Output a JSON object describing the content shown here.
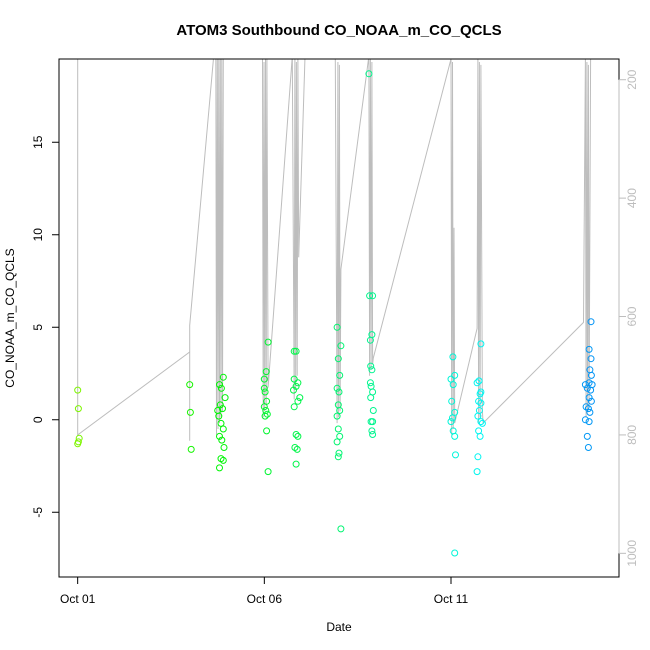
{
  "chart_data": {
    "type": "scatter",
    "title": "ATOM3 Southbound CO_NOAA_m_CO_QCLS",
    "xlabel": "Date",
    "ylabel": "CO_NOAA_m_CO_QCLS",
    "x_ticks": [
      {
        "label": "Oct 01",
        "day": 1
      },
      {
        "label": "Oct 06",
        "day": 6
      },
      {
        "label": "Oct 11",
        "day": 11
      }
    ],
    "y_ticks": [
      -5,
      0,
      5,
      10,
      15
    ],
    "ylim": [
      -8.5,
      19.5
    ],
    "xlim_days": [
      0.5,
      15.5
    ],
    "right_axis": {
      "ticks": [
        200,
        400,
        600,
        800,
        1000
      ],
      "range": [
        165,
        1040
      ],
      "reversed": true,
      "color": "#bdbdbd"
    },
    "grid": false,
    "legend": "none",
    "point_style": "open circles, color gradient from green (early) through cyan to blue (late)",
    "series": [
      {
        "values": [
          {
            "x": 1.0,
            "y": 1.6
          },
          {
            "x": 1.02,
            "y": 0.6
          },
          {
            "x": 1.04,
            "y": -1.0
          },
          {
            "x": 1.02,
            "y": -1.2
          },
          {
            "x": 1.0,
            "y": -1.3
          },
          {
            "x": 4.0,
            "y": 1.9
          },
          {
            "x": 4.02,
            "y": 0.4
          },
          {
            "x": 4.04,
            "y": -1.6
          },
          {
            "x": 4.75,
            "y": 0.5
          },
          {
            "x": 4.8,
            "y": 1.9
          },
          {
            "x": 4.85,
            "y": 1.7
          },
          {
            "x": 4.9,
            "y": 2.3
          },
          {
            "x": 4.95,
            "y": 1.2
          },
          {
            "x": 4.82,
            "y": 0.8
          },
          {
            "x": 4.88,
            "y": 0.6
          },
          {
            "x": 4.78,
            "y": 0.2
          },
          {
            "x": 4.84,
            "y": -0.2
          },
          {
            "x": 4.9,
            "y": -0.5
          },
          {
            "x": 4.8,
            "y": -0.9
          },
          {
            "x": 4.86,
            "y": -1.1
          },
          {
            "x": 4.92,
            "y": -1.5
          },
          {
            "x": 4.84,
            "y": -2.1
          },
          {
            "x": 4.9,
            "y": -2.2
          },
          {
            "x": 4.8,
            "y": -2.6
          },
          {
            "x": 6.0,
            "y": 2.2
          },
          {
            "x": 6.05,
            "y": 2.6
          },
          {
            "x": 6.1,
            "y": 4.2
          },
          {
            "x": 6.0,
            "y": 1.7
          },
          {
            "x": 6.02,
            "y": 1.5
          },
          {
            "x": 6.06,
            "y": 1.0
          },
          {
            "x": 6.0,
            "y": 0.7
          },
          {
            "x": 6.04,
            "y": 0.5
          },
          {
            "x": 6.08,
            "y": 0.3
          },
          {
            "x": 6.02,
            "y": 0.2
          },
          {
            "x": 6.06,
            "y": -0.6
          },
          {
            "x": 6.1,
            "y": -2.8
          },
          {
            "x": 6.8,
            "y": 3.7
          },
          {
            "x": 6.85,
            "y": 3.7
          },
          {
            "x": 6.8,
            "y": 2.2
          },
          {
            "x": 6.85,
            "y": 1.8
          },
          {
            "x": 6.9,
            "y": 2.0
          },
          {
            "x": 6.78,
            "y": 1.6
          },
          {
            "x": 6.95,
            "y": 1.2
          },
          {
            "x": 6.9,
            "y": 1.0
          },
          {
            "x": 6.8,
            "y": 0.7
          },
          {
            "x": 6.85,
            "y": -0.8
          },
          {
            "x": 6.9,
            "y": -0.9
          },
          {
            "x": 6.82,
            "y": -1.5
          },
          {
            "x": 6.88,
            "y": -1.6
          },
          {
            "x": 6.85,
            "y": -2.4
          },
          {
            "x": 7.95,
            "y": 5.0
          },
          {
            "x": 8.05,
            "y": 4.0
          },
          {
            "x": 7.98,
            "y": 3.3
          },
          {
            "x": 8.02,
            "y": 2.4
          },
          {
            "x": 7.95,
            "y": 1.7
          },
          {
            "x": 8.0,
            "y": 1.5
          },
          {
            "x": 7.98,
            "y": 0.8
          },
          {
            "x": 8.02,
            "y": 0.5
          },
          {
            "x": 7.95,
            "y": 0.2
          },
          {
            "x": 7.98,
            "y": -0.5
          },
          {
            "x": 8.02,
            "y": -0.9
          },
          {
            "x": 7.95,
            "y": -1.2
          },
          {
            "x": 8.0,
            "y": -1.8
          },
          {
            "x": 7.98,
            "y": -2.0
          },
          {
            "x": 8.05,
            "y": -5.9
          },
          {
            "x": 8.8,
            "y": 18.7
          },
          {
            "x": 8.82,
            "y": 6.7
          },
          {
            "x": 8.9,
            "y": 6.7
          },
          {
            "x": 8.88,
            "y": 4.6
          },
          {
            "x": 8.84,
            "y": 4.3
          },
          {
            "x": 8.85,
            "y": 2.9
          },
          {
            "x": 8.88,
            "y": 2.7
          },
          {
            "x": 8.84,
            "y": 2.0
          },
          {
            "x": 8.86,
            "y": 1.8
          },
          {
            "x": 8.9,
            "y": 1.5
          },
          {
            "x": 8.85,
            "y": 1.2
          },
          {
            "x": 8.92,
            "y": 0.5
          },
          {
            "x": 8.86,
            "y": -0.1
          },
          {
            "x": 8.9,
            "y": -0.1
          },
          {
            "x": 8.88,
            "y": -0.6
          },
          {
            "x": 8.9,
            "y": -0.8
          },
          {
            "x": 11.05,
            "y": 3.4
          },
          {
            "x": 11.1,
            "y": 2.4
          },
          {
            "x": 11.0,
            "y": 2.2
          },
          {
            "x": 11.06,
            "y": 1.9
          },
          {
            "x": 11.02,
            "y": 1.0
          },
          {
            "x": 11.1,
            "y": 0.4
          },
          {
            "x": 11.04,
            "y": 0.1
          },
          {
            "x": 11.0,
            "y": -0.1
          },
          {
            "x": 11.06,
            "y": -0.6
          },
          {
            "x": 11.1,
            "y": -0.9
          },
          {
            "x": 11.12,
            "y": -1.9
          },
          {
            "x": 11.1,
            "y": -7.2
          },
          {
            "x": 11.8,
            "y": 4.1
          },
          {
            "x": 11.75,
            "y": 2.1
          },
          {
            "x": 11.7,
            "y": 2.0
          },
          {
            "x": 11.8,
            "y": 1.5
          },
          {
            "x": 11.78,
            "y": 1.4
          },
          {
            "x": 11.74,
            "y": 1.0
          },
          {
            "x": 11.8,
            "y": 0.9
          },
          {
            "x": 11.76,
            "y": 0.5
          },
          {
            "x": 11.72,
            "y": 0.2
          },
          {
            "x": 11.8,
            "y": -0.1
          },
          {
            "x": 11.84,
            "y": -0.2
          },
          {
            "x": 11.74,
            "y": -0.6
          },
          {
            "x": 11.78,
            "y": -0.9
          },
          {
            "x": 11.72,
            "y": -2.0
          },
          {
            "x": 11.7,
            "y": -2.8
          },
          {
            "x": 14.75,
            "y": 5.3
          },
          {
            "x": 14.7,
            "y": 3.8
          },
          {
            "x": 14.75,
            "y": 3.3
          },
          {
            "x": 14.72,
            "y": 2.7
          },
          {
            "x": 14.76,
            "y": 2.4
          },
          {
            "x": 14.6,
            "y": 1.9
          },
          {
            "x": 14.7,
            "y": 2.0
          },
          {
            "x": 14.78,
            "y": 1.9
          },
          {
            "x": 14.65,
            "y": 1.7
          },
          {
            "x": 14.74,
            "y": 1.6
          },
          {
            "x": 14.7,
            "y": 1.2
          },
          {
            "x": 14.76,
            "y": 1.0
          },
          {
            "x": 14.62,
            "y": 0.7
          },
          {
            "x": 14.68,
            "y": 0.6
          },
          {
            "x": 14.72,
            "y": 0.4
          },
          {
            "x": 14.6,
            "y": 0.0
          },
          {
            "x": 14.7,
            "y": -0.1
          },
          {
            "x": 14.65,
            "y": -0.9
          },
          {
            "x": 14.68,
            "y": -1.5
          }
        ]
      }
    ],
    "pressure_trace": {
      "color": "#bdbdbd",
      "points": [
        {
          "x": 1.0,
          "p": 165
        },
        {
          "x": 1.0,
          "p": 800
        },
        {
          "x": 4.0,
          "p": 660
        },
        {
          "x": 4.0,
          "p": 765
        },
        {
          "x": 4.0,
          "p": 810
        },
        {
          "x": 4.0,
          "p": 615
        },
        {
          "x": 4.7,
          "p": 120
        },
        {
          "x": 4.72,
          "p": 800
        },
        {
          "x": 4.74,
          "p": 120
        },
        {
          "x": 4.76,
          "p": 790
        },
        {
          "x": 4.78,
          "p": 130
        },
        {
          "x": 4.8,
          "p": 780
        },
        {
          "x": 4.82,
          "p": 140
        },
        {
          "x": 4.84,
          "p": 770
        },
        {
          "x": 4.86,
          "p": 150
        },
        {
          "x": 4.88,
          "p": 760
        },
        {
          "x": 4.9,
          "p": 160
        },
        {
          "x": 5.95,
          "p": 160
        },
        {
          "x": 5.97,
          "p": 770
        },
        {
          "x": 5.99,
          "p": 170
        },
        {
          "x": 6.01,
          "p": 760
        },
        {
          "x": 6.03,
          "p": 165
        },
        {
          "x": 6.05,
          "p": 750
        },
        {
          "x": 6.07,
          "p": 165
        },
        {
          "x": 6.1,
          "p": 720
        },
        {
          "x": 6.75,
          "p": 160
        },
        {
          "x": 6.8,
          "p": 740
        },
        {
          "x": 6.82,
          "p": 165
        },
        {
          "x": 6.84,
          "p": 720
        },
        {
          "x": 6.86,
          "p": 170
        },
        {
          "x": 6.88,
          "p": 700
        },
        {
          "x": 6.9,
          "p": 165
        },
        {
          "x": 6.92,
          "p": 500
        },
        {
          "x": 7.1,
          "p": 140
        },
        {
          "x": 7.9,
          "p": 165
        },
        {
          "x": 7.95,
          "p": 780
        },
        {
          "x": 7.97,
          "p": 170
        },
        {
          "x": 7.99,
          "p": 770
        },
        {
          "x": 8.01,
          "p": 175
        },
        {
          "x": 8.03,
          "p": 760
        },
        {
          "x": 8.05,
          "p": 520
        },
        {
          "x": 8.8,
          "p": 160
        },
        {
          "x": 8.82,
          "p": 700
        },
        {
          "x": 8.84,
          "p": 165
        },
        {
          "x": 8.86,
          "p": 690
        },
        {
          "x": 8.88,
          "p": 170
        },
        {
          "x": 8.9,
          "p": 680
        },
        {
          "x": 8.92,
          "p": 670
        },
        {
          "x": 11.0,
          "p": 165
        },
        {
          "x": 11.02,
          "p": 800
        },
        {
          "x": 11.04,
          "p": 170
        },
        {
          "x": 11.06,
          "p": 790
        },
        {
          "x": 11.08,
          "p": 450
        },
        {
          "x": 11.1,
          "p": 780
        },
        {
          "x": 11.7,
          "p": 620
        },
        {
          "x": 11.72,
          "p": 165
        },
        {
          "x": 11.74,
          "p": 780
        },
        {
          "x": 11.76,
          "p": 170
        },
        {
          "x": 11.78,
          "p": 770
        },
        {
          "x": 11.8,
          "p": 175
        },
        {
          "x": 11.84,
          "p": 760
        },
        {
          "x": 11.86,
          "p": 780
        },
        {
          "x": 14.55,
          "p": 610
        },
        {
          "x": 14.6,
          "p": 165
        },
        {
          "x": 14.62,
          "p": 770
        },
        {
          "x": 14.64,
          "p": 170
        },
        {
          "x": 14.66,
          "p": 760
        },
        {
          "x": 14.68,
          "p": 175
        },
        {
          "x": 14.7,
          "p": 750
        },
        {
          "x": 14.74,
          "p": 165
        }
      ]
    }
  }
}
